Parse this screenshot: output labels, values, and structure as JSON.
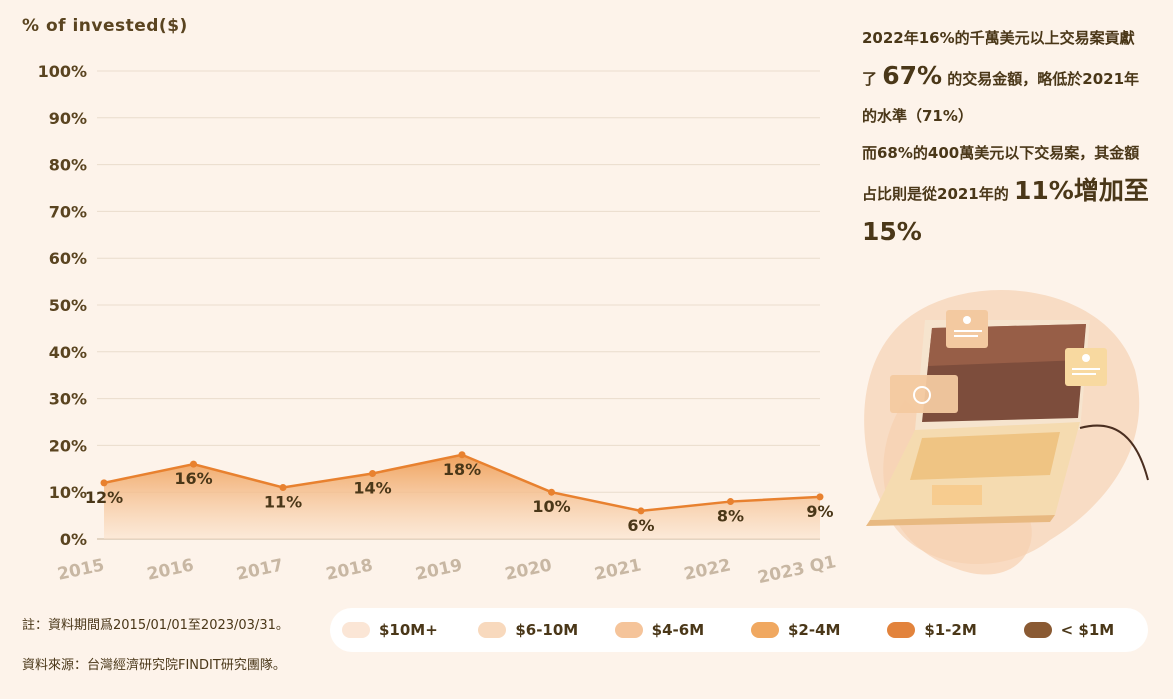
{
  "y_axis_unit_label": "% of invested($)",
  "chart_data": {
    "type": "line",
    "categories": [
      "2015",
      "2016",
      "2017",
      "2018",
      "2019",
      "2020",
      "2021",
      "2022",
      "2023 Q1"
    ],
    "values": [
      12,
      16,
      11,
      14,
      18,
      10,
      6,
      8,
      9
    ],
    "data_labels": [
      "12%",
      "16%",
      "11%",
      "14%",
      "18%",
      "10%",
      "6%",
      "8%",
      "9%"
    ],
    "y_ticks": [
      "0%",
      "10%",
      "20%",
      "30%",
      "40%",
      "50%",
      "60%",
      "70%",
      "80%",
      "90%",
      "100%"
    ],
    "ylim": [
      0,
      100
    ],
    "grid": true,
    "line_color": "#e8812f",
    "area_color": "#f0a45f"
  },
  "side_text": {
    "line1": "2022年16%的千萬美元以上交易案貢獻",
    "line2_prefix": "了 ",
    "line2_big": "67%",
    "line2_suffix": " 的交易金額，略低於2021年",
    "line3": "的水準（71%）",
    "line4": "而68%的400萬美元以下交易案，其金額",
    "line5_prefix": "占比則是從2021年的 ",
    "line5_big": "11%增加至",
    "line6_big": "15%"
  },
  "notes": {
    "period": "註：資料期間爲2015/01/01至2023/03/31。",
    "source": "資料來源：台灣經濟研究院FINDIT研究團隊。"
  },
  "legend": [
    {
      "label": "$10M+",
      "color": "#fbe6d6"
    },
    {
      "label": "$6-10M",
      "color": "#f8d9bd"
    },
    {
      "label": "$4-6M",
      "color": "#f5c49a"
    },
    {
      "label": "$2-4M",
      "color": "#f0a860"
    },
    {
      "label": "$1-2M",
      "color": "#e2833c"
    },
    {
      "label": "< $1M",
      "color": "#8a5a33"
    }
  ]
}
